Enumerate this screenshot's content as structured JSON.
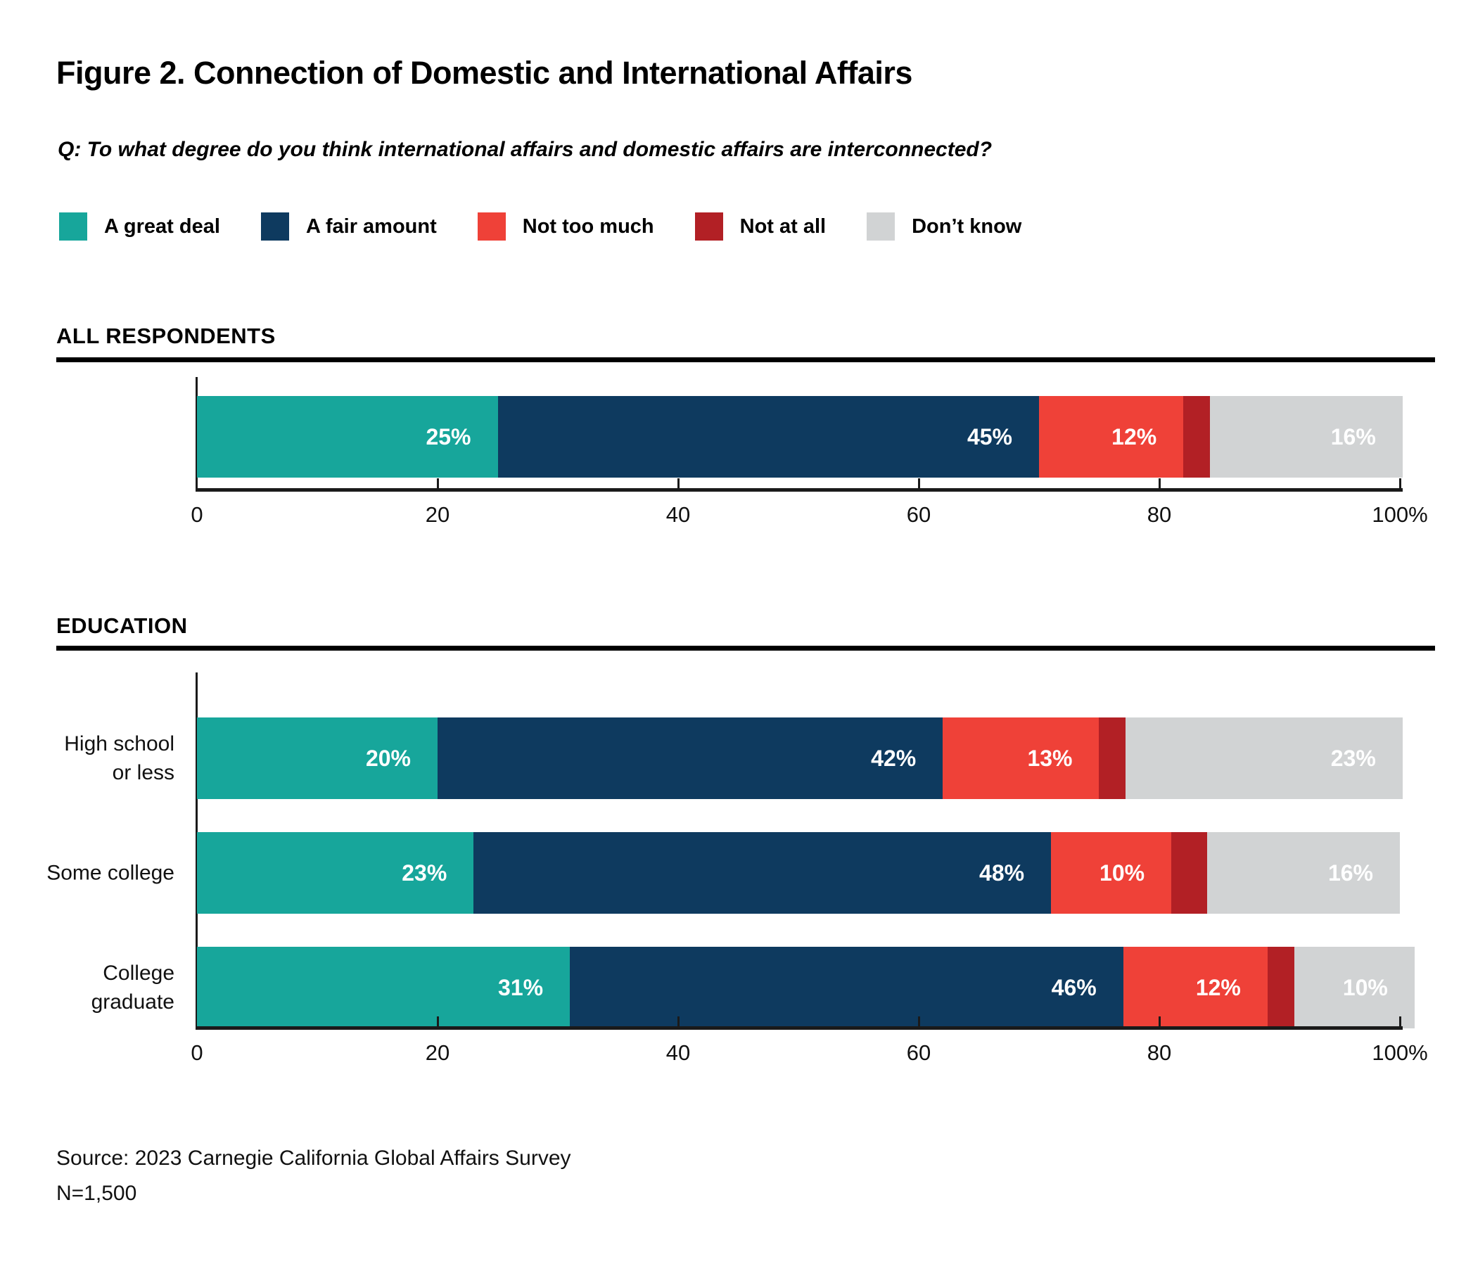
{
  "page": {
    "title": "Figure 2. Connection of Domestic and International Affairs",
    "question": "Q: To what degree do you think international affairs and domestic affairs are interconnected?",
    "source": "Source: 2023 Carnegie California Global Affairs Survey",
    "sample_size": "N=1,500"
  },
  "colors": {
    "a_great_deal": "#17A69B",
    "a_fair_amount": "#0E3A5F",
    "not_too_much": "#EF4138",
    "not_at_all": "#B22025",
    "dont_know": "#D1D3D4",
    "axis": "#1A1A1A",
    "background": "#FFFFFF"
  },
  "legend": [
    {
      "label": "A great deal",
      "color": "#17A69B"
    },
    {
      "label": "A fair amount",
      "color": "#0E3A5F"
    },
    {
      "label": "Not too much",
      "color": "#EF4138"
    },
    {
      "label": "Not at all",
      "color": "#B22025"
    },
    {
      "label": "Don’t know",
      "color": "#D1D3D4"
    }
  ],
  "chart_data": [
    {
      "type": "bar",
      "orientation": "horizontal",
      "stacked": true,
      "section_title": "ALL RESPONDENTS",
      "categories": [
        ""
      ],
      "category_lines": [
        []
      ],
      "series": [
        {
          "name": "A great deal",
          "values": [
            25
          ],
          "show_labels": true
        },
        {
          "name": "A fair amount",
          "values": [
            45
          ],
          "show_labels": true
        },
        {
          "name": "Not too much",
          "values": [
            12
          ],
          "show_labels": true
        },
        {
          "name": "Not at all",
          "values": [
            2
          ],
          "show_labels": false
        },
        {
          "name": "Don’t know",
          "values": [
            16
          ],
          "show_labels": true
        }
      ],
      "xlim": [
        0,
        100
      ],
      "x_ticks": [
        "0",
        "20",
        "40",
        "60",
        "80",
        "100%"
      ],
      "grid": false,
      "legend_position": "top",
      "value_suffix": "%"
    },
    {
      "type": "bar",
      "orientation": "horizontal",
      "stacked": true,
      "section_title": "EDUCATION",
      "categories": [
        "High school or less",
        "Some college",
        "College graduate"
      ],
      "category_lines": [
        [
          "High school",
          "or less"
        ],
        [
          "Some college"
        ],
        [
          "College",
          "graduate"
        ]
      ],
      "series": [
        {
          "name": "A great deal",
          "values": [
            20,
            23,
            31
          ],
          "show_labels": true
        },
        {
          "name": "A fair amount",
          "values": [
            42,
            48,
            46
          ],
          "show_labels": true
        },
        {
          "name": "Not too much",
          "values": [
            13,
            10,
            12
          ],
          "show_labels": true
        },
        {
          "name": "Not at all",
          "values": [
            2,
            3,
            1
          ],
          "show_labels": false
        },
        {
          "name": "Don’t know",
          "values": [
            23,
            16,
            10
          ],
          "show_labels": true
        }
      ],
      "xlim": [
        0,
        100
      ],
      "x_ticks": [
        "0",
        "20",
        "40",
        "60",
        "80",
        "100%"
      ],
      "grid": false,
      "value_suffix": "%"
    }
  ]
}
